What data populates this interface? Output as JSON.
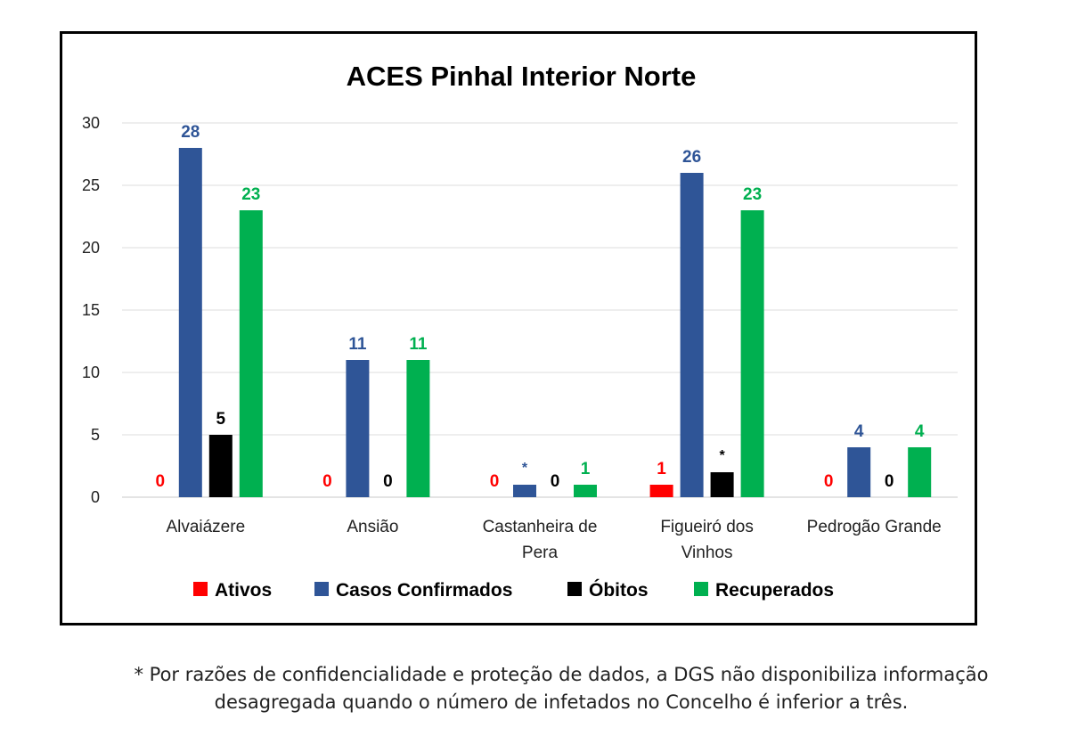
{
  "chart_data": {
    "type": "bar",
    "title": "ACES Pinhal Interior Norte",
    "categories": [
      [
        "Alvaiázere"
      ],
      [
        "Ansião"
      ],
      [
        "Castanheira de",
        "Pera"
      ],
      [
        "Figueiró dos",
        "Vinhos"
      ],
      [
        "Pedrogão Grande"
      ]
    ],
    "series": [
      {
        "name": "Ativos",
        "color": "#ff0000",
        "values": [
          0,
          0,
          0,
          1,
          0
        ],
        "labels": [
          "0",
          "0",
          "0",
          "1",
          "0"
        ]
      },
      {
        "name": "Casos Confirmados",
        "color": "#2f5597",
        "values": [
          28,
          11,
          1,
          26,
          4
        ],
        "labels": [
          "28",
          "11",
          "*",
          "26",
          "4"
        ]
      },
      {
        "name": "Óbitos",
        "color": "#000000",
        "values": [
          5,
          0,
          0,
          2,
          0
        ],
        "labels": [
          "5",
          "0",
          "0",
          "*",
          "0"
        ]
      },
      {
        "name": "Recuperados",
        "color": "#00b050",
        "values": [
          23,
          11,
          1,
          23,
          4
        ],
        "labels": [
          "23",
          "11",
          "1",
          "23",
          "4"
        ]
      }
    ],
    "ylim": [
      0,
      30
    ],
    "yticks": [
      0,
      5,
      10,
      15,
      20,
      25,
      30
    ],
    "grid": true,
    "legend_position": "bottom"
  },
  "footnote": {
    "line1": "* Por razões de confidencialidade e proteção de dados, a DGS não disponibiliza informação",
    "line2": "desagregada quando o número de infetados no Concelho é inferior a três."
  }
}
